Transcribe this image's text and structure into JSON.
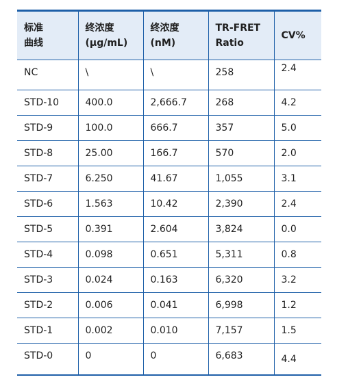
{
  "table": {
    "headers": [
      [
        "标准",
        "曲线"
      ],
      [
        "终浓度",
        "(μg/mL)"
      ],
      [
        "终浓度",
        "(nM)"
      ],
      [
        "TR-FRET",
        "Ratio"
      ],
      [
        "CV%"
      ]
    ],
    "rows": [
      [
        "NC",
        "\\",
        "\\",
        "258",
        "2.4"
      ],
      [
        "STD-10",
        "400.0",
        "2,666.7",
        "268",
        "4.2"
      ],
      [
        "STD-9",
        "100.0",
        "666.7",
        "357",
        "5.0"
      ],
      [
        "STD-8",
        "25.00",
        "166.7",
        "570",
        "2.0"
      ],
      [
        "STD-7",
        "6.250",
        "41.67",
        "1,055",
        "3.1"
      ],
      [
        "STD-6",
        "1.563",
        "10.42",
        "2,390",
        "2.4"
      ],
      [
        "STD-5",
        "0.391",
        "2.604",
        "3,824",
        "0.0"
      ],
      [
        "STD-4",
        "0.098",
        "0.651",
        "5,311",
        "0.8"
      ],
      [
        "STD-3",
        "0.024",
        "0.163",
        "6,320",
        "3.2"
      ],
      [
        "STD-2",
        "0.006",
        "0.041",
        "6,998",
        "1.2"
      ],
      [
        "STD-1",
        "0.002",
        "0.010",
        "7,157",
        "1.5"
      ],
      [
        "STD-0",
        "0",
        "0",
        "6,683",
        "4.4"
      ]
    ]
  },
  "colors": {
    "border": "#1d5fa8",
    "header_bg": "#e3ecf7",
    "text": "#1f1f1f"
  }
}
